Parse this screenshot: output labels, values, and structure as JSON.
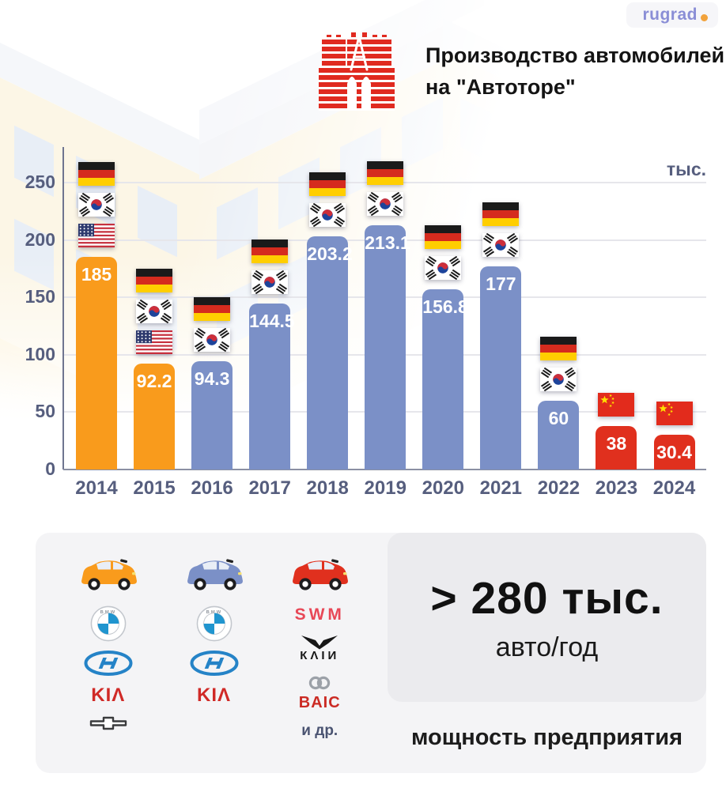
{
  "badge": {
    "text": "rugrad",
    "text_color": "#8A8ED6",
    "dot_color": "#F2A33C"
  },
  "header": {
    "title_line1": "Производство автомобилей",
    "title_line2": "на \"Автоторе\"",
    "logo_color": "#E02A20"
  },
  "chart_data": {
    "type": "bar",
    "title": "Производство автомобилей на \"Автоторе\"",
    "unit_label": "тыс.",
    "y_ticks": [
      0,
      50,
      100,
      150,
      200,
      250
    ],
    "ylim": [
      0,
      275
    ],
    "grid": true,
    "categories": [
      "2014",
      "2015",
      "2016",
      "2017",
      "2018",
      "2019",
      "2020",
      "2021",
      "2022",
      "2023",
      "2024"
    ],
    "values": [
      185,
      92.2,
      94.3,
      144.5,
      203.2,
      213.1,
      156.8,
      177,
      60,
      38,
      30.4
    ],
    "bar_color_keys": [
      "orange",
      "orange",
      "blue",
      "blue",
      "blue",
      "blue",
      "blue",
      "blue",
      "blue",
      "red",
      "red"
    ],
    "colors": {
      "orange": "#F99B1C",
      "blue": "#7B90C7",
      "red": "#E0301E"
    },
    "flags_per_year": [
      [
        "de",
        "kr",
        "us"
      ],
      [
        "de",
        "kr",
        "us"
      ],
      [
        "de",
        "kr"
      ],
      [
        "de",
        "kr"
      ],
      [
        "de",
        "kr"
      ],
      [
        "de",
        "kr"
      ],
      [
        "de",
        "kr"
      ],
      [
        "de",
        "kr"
      ],
      [
        "de",
        "kr"
      ],
      [
        "cn"
      ],
      [
        "cn"
      ]
    ],
    "flag_names": {
      "de": "germany-flag",
      "kr": "south-korea-flag",
      "us": "usa-flag",
      "cn": "china-flag"
    }
  },
  "axis": {
    "text_color": "#565E7E",
    "grid_color": "#E6E6EB"
  },
  "legend": {
    "columns": [
      {
        "era": "orange",
        "car": "orange-car",
        "brands": [
          "bmw",
          "hyundai",
          "kia",
          "chevrolet"
        ]
      },
      {
        "era": "blue",
        "car": "blue-car",
        "brands": [
          "bmw",
          "hyundai",
          "kia"
        ]
      },
      {
        "era": "red",
        "car": "red-car",
        "brands": [
          "swm",
          "kaiyi",
          "baic"
        ],
        "extra": "и др."
      }
    ],
    "brand_labels": {
      "bmw": "BMW",
      "kia": "KIΛ",
      "swm": "SWM",
      "kaiyi_word": "КΛIИ",
      "baic": "BAIC"
    }
  },
  "capacity": {
    "value": "> 280 тыс.",
    "unit": "авто/год",
    "caption": "мощность предприятия"
  }
}
